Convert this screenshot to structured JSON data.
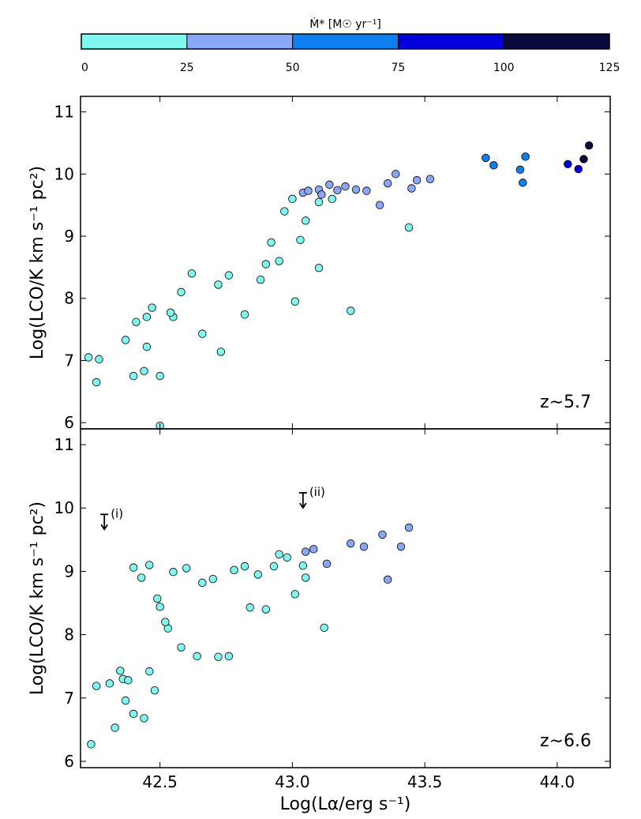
{
  "chart_data": {
    "type": "scatter",
    "colorbar": {
      "label": "Ṁ* [M☉ yr⁻¹]",
      "bins": [
        {
          "range": [
            0,
            25
          ],
          "color": "#7ff6ee"
        },
        {
          "range": [
            25,
            50
          ],
          "color": "#8aa6f6"
        },
        {
          "range": [
            50,
            75
          ],
          "color": "#0f7ff0"
        },
        {
          "range": [
            75,
            100
          ],
          "color": "#0000dd"
        },
        {
          "range": [
            100,
            125
          ],
          "color": "#0a0a3c"
        }
      ],
      "ticks": [
        "0",
        "25",
        "50",
        "75",
        "100",
        "125"
      ],
      "range": [
        0,
        125
      ]
    },
    "xlabel": "Log(Lα/erg s⁻¹)",
    "xlim": [
      42.2,
      44.2
    ],
    "xticks": [
      "42.5",
      "43.0",
      "43.5",
      "44.0"
    ],
    "panels": [
      {
        "redshift_label": "z∼5.7",
        "ylabel": "Log(LCO/K km s⁻¹ pc²)",
        "ylim": [
          5.9,
          11.25
        ],
        "yticks": [
          "6",
          "7",
          "8",
          "9",
          "10",
          "11"
        ],
        "points": [
          [
            43.73,
            10.26,
            60
          ],
          [
            43.76,
            10.14,
            60
          ],
          [
            43.86,
            10.07,
            60
          ],
          [
            43.88,
            10.28,
            60
          ],
          [
            43.87,
            9.86,
            60
          ],
          [
            44.04,
            10.16,
            80
          ],
          [
            44.08,
            10.08,
            80
          ],
          [
            44.1,
            10.24,
            105
          ],
          [
            44.12,
            10.46,
            110
          ],
          [
            43.04,
            9.7,
            35
          ],
          [
            43.06,
            9.73,
            35
          ],
          [
            43.1,
            9.75,
            35
          ],
          [
            43.14,
            9.83,
            35
          ],
          [
            43.17,
            9.74,
            35
          ],
          [
            43.2,
            9.8,
            35
          ],
          [
            43.24,
            9.75,
            35
          ],
          [
            43.28,
            9.73,
            35
          ],
          [
            43.33,
            9.5,
            35
          ],
          [
            43.36,
            9.85,
            35
          ],
          [
            43.39,
            10.0,
            35
          ],
          [
            43.45,
            9.77,
            35
          ],
          [
            43.47,
            9.9,
            35
          ],
          [
            43.52,
            9.92,
            35
          ],
          [
            43.11,
            9.67,
            35
          ],
          [
            43.0,
            9.6,
            15
          ],
          [
            43.05,
            9.25,
            15
          ],
          [
            43.1,
            9.55,
            15
          ],
          [
            43.15,
            9.6,
            15
          ],
          [
            43.03,
            8.94,
            15
          ],
          [
            43.44,
            9.14,
            15
          ],
          [
            43.1,
            8.49,
            15
          ],
          [
            43.01,
            7.95,
            15
          ],
          [
            43.22,
            7.8,
            15
          ],
          [
            42.97,
            9.4,
            15
          ],
          [
            42.92,
            8.9,
            15
          ],
          [
            42.95,
            8.6,
            15
          ],
          [
            42.9,
            8.55,
            15
          ],
          [
            42.88,
            8.3,
            15
          ],
          [
            42.82,
            7.74,
            15
          ],
          [
            42.72,
            8.22,
            15
          ],
          [
            42.76,
            8.37,
            15
          ],
          [
            42.66,
            7.43,
            15
          ],
          [
            42.73,
            7.14,
            15
          ],
          [
            42.55,
            7.7,
            15
          ],
          [
            42.5,
            6.75,
            15
          ],
          [
            42.44,
            6.83,
            15
          ],
          [
            42.4,
            6.75,
            15
          ],
          [
            42.26,
            6.65,
            15
          ],
          [
            42.23,
            7.05,
            15
          ],
          [
            42.27,
            7.02,
            15
          ],
          [
            42.37,
            7.33,
            15
          ],
          [
            42.45,
            7.22,
            15
          ],
          [
            42.5,
            5.95,
            15
          ],
          [
            42.45,
            7.7,
            15
          ],
          [
            42.41,
            7.62,
            15
          ],
          [
            42.47,
            7.85,
            15
          ],
          [
            42.54,
            7.77,
            15
          ],
          [
            42.58,
            8.1,
            15
          ],
          [
            42.62,
            8.4,
            15
          ]
        ]
      },
      {
        "redshift_label": "z∼6.6",
        "ylabel": "Log(LCO/K km s⁻¹ pc²)",
        "ylim": [
          5.9,
          11.25
        ],
        "yticks": [
          "6",
          "7",
          "8",
          "9",
          "10",
          "11"
        ],
        "points": [
          [
            43.05,
            9.31,
            35
          ],
          [
            43.08,
            9.35,
            35
          ],
          [
            43.22,
            9.44,
            35
          ],
          [
            43.27,
            9.39,
            35
          ],
          [
            43.34,
            9.58,
            35
          ],
          [
            43.41,
            9.39,
            35
          ],
          [
            43.44,
            9.69,
            35
          ],
          [
            43.36,
            8.87,
            35
          ],
          [
            43.13,
            9.12,
            35
          ],
          [
            43.05,
            8.9,
            15
          ],
          [
            43.04,
            9.09,
            15
          ],
          [
            43.01,
            8.64,
            15
          ],
          [
            42.98,
            9.22,
            15
          ],
          [
            42.95,
            9.27,
            15
          ],
          [
            42.93,
            9.08,
            15
          ],
          [
            42.9,
            8.4,
            15
          ],
          [
            43.12,
            8.11,
            15
          ],
          [
            42.84,
            8.43,
            15
          ],
          [
            42.76,
            7.66,
            15
          ],
          [
            42.72,
            7.65,
            15
          ],
          [
            42.64,
            7.66,
            15
          ],
          [
            42.58,
            7.8,
            15
          ],
          [
            42.48,
            7.12,
            15
          ],
          [
            42.44,
            6.68,
            15
          ],
          [
            42.4,
            6.75,
            15
          ],
          [
            42.37,
            6.96,
            15
          ],
          [
            42.33,
            6.53,
            15
          ],
          [
            42.24,
            6.27,
            15
          ],
          [
            42.26,
            7.19,
            15
          ],
          [
            42.31,
            7.23,
            15
          ],
          [
            42.36,
            7.3,
            15
          ],
          [
            42.38,
            7.28,
            15
          ],
          [
            42.46,
            7.42,
            15
          ],
          [
            42.35,
            7.43,
            15
          ],
          [
            42.53,
            8.1,
            15
          ],
          [
            42.49,
            8.57,
            15
          ],
          [
            42.5,
            8.44,
            15
          ],
          [
            42.52,
            8.2,
            15
          ],
          [
            42.4,
            9.06,
            15
          ],
          [
            42.46,
            9.1,
            15
          ],
          [
            42.43,
            8.9,
            15
          ],
          [
            42.55,
            8.99,
            15
          ],
          [
            42.6,
            9.05,
            15
          ],
          [
            42.66,
            8.82,
            15
          ],
          [
            42.7,
            8.88,
            15
          ],
          [
            42.78,
            9.02,
            15
          ],
          [
            42.82,
            9.08,
            15
          ],
          [
            42.87,
            8.95,
            15
          ]
        ]
      }
    ],
    "annotations": [
      {
        "panel": 1,
        "text": "(i)",
        "x": 42.29,
        "y": 9.75,
        "marker": "upper-limit"
      },
      {
        "panel": 1,
        "text": "(ii)",
        "x": 43.04,
        "y": 10.09,
        "marker": "upper-limit"
      }
    ]
  }
}
